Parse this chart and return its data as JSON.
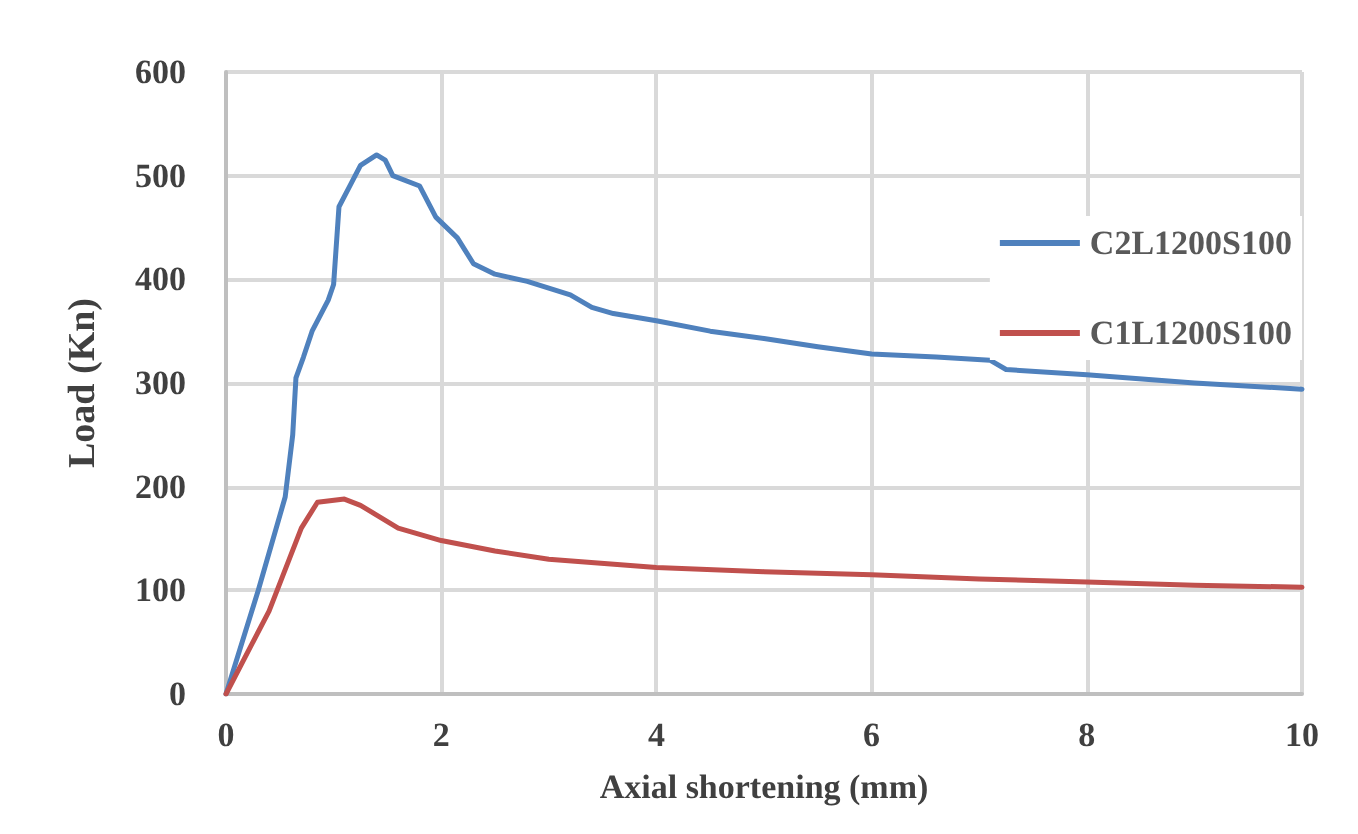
{
  "chart_data": {
    "type": "line",
    "xlabel": "Axial shortening (mm)",
    "ylabel": "Load (Kn)",
    "xlim": [
      0,
      10
    ],
    "xticks": [
      0,
      2,
      4,
      6,
      8,
      10
    ],
    "ylim": [
      0,
      600
    ],
    "yticks": [
      0,
      100,
      200,
      300,
      400,
      500,
      600
    ],
    "grid": true,
    "legend": "right",
    "marker": "none",
    "line_style": "solid",
    "series": [
      {
        "name": "C2L1200S100",
        "color": "#4f81bd",
        "x": [
          0,
          0.3,
          0.55,
          0.62,
          0.65,
          0.72,
          0.8,
          0.95,
          1.0,
          1.05,
          1.15,
          1.25,
          1.4,
          1.48,
          1.55,
          1.8,
          1.95,
          2.15,
          2.3,
          2.5,
          2.8,
          3.2,
          3.4,
          3.6,
          4.0,
          4.5,
          5.0,
          5.5,
          6.0,
          6.6,
          7.1,
          7.25,
          8,
          9,
          10
        ],
        "values": [
          0,
          100,
          190,
          250,
          305,
          325,
          350,
          380,
          395,
          470,
          490,
          510,
          520,
          515,
          500,
          490,
          460,
          440,
          415,
          405,
          398,
          385,
          373,
          367,
          360,
          350,
          343,
          335,
          328,
          325,
          322,
          313,
          308,
          300,
          294
        ]
      },
      {
        "name": "C1L1200S100",
        "color": "#c0504d",
        "x": [
          0,
          0.4,
          0.7,
          0.85,
          1.1,
          1.25,
          1.6,
          2.0,
          2.5,
          3.0,
          4,
          5,
          6,
          7,
          8,
          9,
          10
        ],
        "values": [
          0,
          80,
          160,
          185,
          188,
          182,
          160,
          148,
          138,
          130,
          122,
          118,
          115,
          111,
          108,
          105,
          103
        ]
      }
    ]
  }
}
